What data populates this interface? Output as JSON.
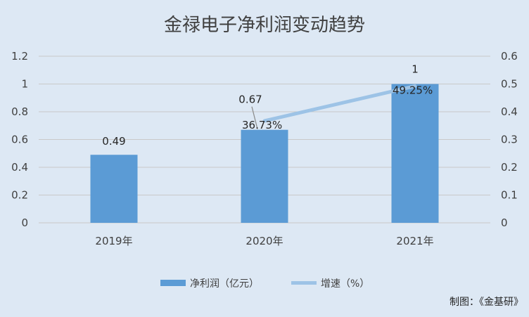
{
  "chart_data": {
    "type": "bar",
    "title": "金禄电子净利润变动趋势",
    "categories": [
      "2019年",
      "2020年",
      "2021年"
    ],
    "series": [
      {
        "name": "净利润（亿元）",
        "type": "bar",
        "axis": "left",
        "values": [
          0.49,
          0.67,
          1
        ],
        "labels": [
          "0.49",
          "0.67",
          "1"
        ],
        "color": "#5b9bd5"
      },
      {
        "name": "增速（%）",
        "type": "line",
        "axis": "right",
        "values": [
          null,
          0.3673,
          0.4925
        ],
        "labels": [
          "",
          "36.73%",
          "49.25%"
        ],
        "color": "#9dc3e6"
      }
    ],
    "y_left": {
      "min": 0,
      "max": 1.2,
      "step": 0.2,
      "ticks": [
        "0",
        "0.2",
        "0.4",
        "0.6",
        "0.8",
        "1",
        "1.2"
      ]
    },
    "y_right": {
      "min": 0,
      "max": 0.6,
      "step": 0.1,
      "ticks": [
        "0",
        "0.1",
        "0.2",
        "0.3",
        "0.4",
        "0.5",
        "0.6"
      ]
    },
    "grid": true,
    "legend_position": "bottom",
    "source": "制图：《金基研》",
    "colors": {
      "background": "#dde8f4",
      "grid": "#c9c9c9",
      "bar": "#5b9bd5",
      "line": "#9dc3e6"
    }
  }
}
